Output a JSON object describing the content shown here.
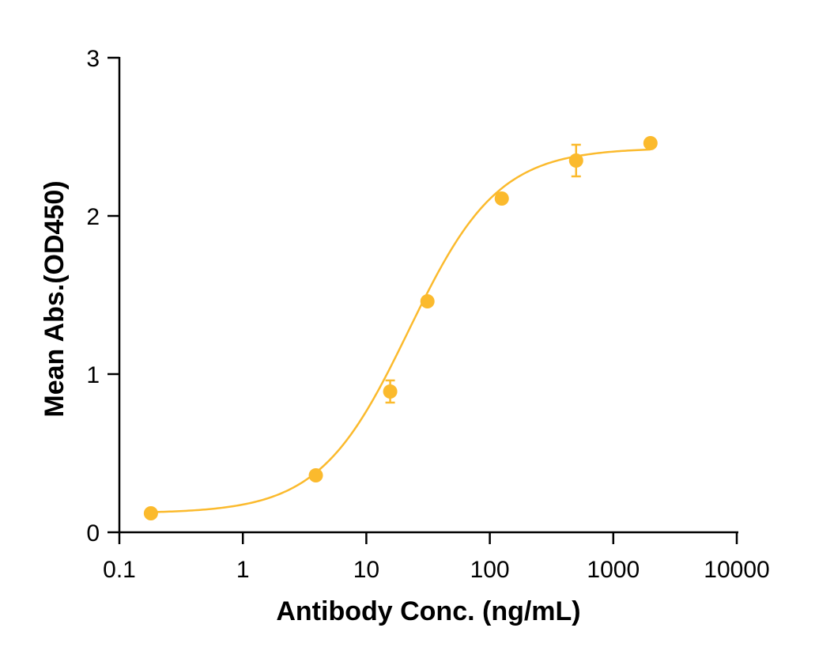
{
  "chart_data": {
    "type": "scatter",
    "title": "",
    "xlabel": "Antibody Conc. (ng/mL)",
    "ylabel": "Mean Abs.(OD450)",
    "x_scale": "log",
    "xlim": [
      0.1,
      10000
    ],
    "ylim": [
      0,
      3
    ],
    "x_ticks": [
      {
        "value": 0.1,
        "label": "0.1"
      },
      {
        "value": 1,
        "label": "1"
      },
      {
        "value": 10,
        "label": "10"
      },
      {
        "value": 100,
        "label": "100"
      },
      {
        "value": 1000,
        "label": "1000"
      },
      {
        "value": 10000,
        "label": "10000"
      }
    ],
    "y_ticks": [
      {
        "value": 0,
        "label": "0"
      },
      {
        "value": 1,
        "label": "1"
      },
      {
        "value": 2,
        "label": "2"
      },
      {
        "value": 3,
        "label": "3"
      }
    ],
    "grid": false,
    "legend": "none",
    "color": "#FBBA2D",
    "series": [
      {
        "points": [
          {
            "x": 0.18,
            "y": 0.12,
            "err": 0.0
          },
          {
            "x": 3.9,
            "y": 0.36,
            "err": 0.0
          },
          {
            "x": 15.6,
            "y": 0.89,
            "err": 0.07
          },
          {
            "x": 31.25,
            "y": 1.46,
            "err": 0.0
          },
          {
            "x": 125,
            "y": 2.11,
            "err": 0.0
          },
          {
            "x": 500,
            "y": 2.35,
            "err": 0.1
          },
          {
            "x": 2000,
            "y": 2.46,
            "err": 0.0
          }
        ]
      }
    ],
    "fit": {
      "model": "4PL",
      "bottom": 0.12,
      "top": 2.43,
      "ec50": 22,
      "hill": 1.2
    }
  }
}
